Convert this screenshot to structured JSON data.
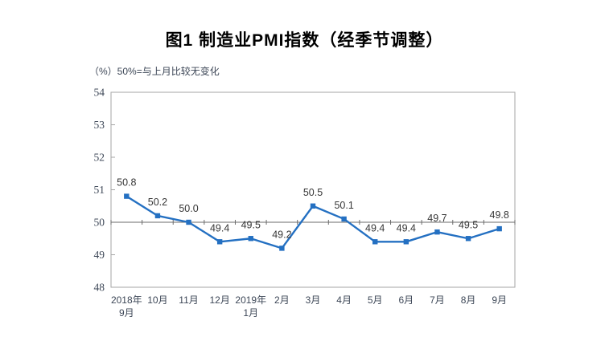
{
  "title": "图1 制造业PMI指数（经季节调整）",
  "axis_note": "（%）50%=与上月比较无变化",
  "colors": {
    "line": "#2470c2",
    "marker": "#2470c2",
    "frame": "#a6a6a6",
    "ref_line": "#6b6b6b",
    "axis_text": "#3d4757",
    "data_label_text": "#363636",
    "title_text": "#000000",
    "background": "#ffffff"
  },
  "chart_data": {
    "type": "line",
    "title": "图1 制造业PMI指数（经季节调整）",
    "unit_note": "（%）50%=与上月比较无变化",
    "categories": [
      [
        "2018年",
        "9月"
      ],
      [
        "10月"
      ],
      [
        "11月"
      ],
      [
        "12月"
      ],
      [
        "2019年",
        "1月"
      ],
      [
        "2月"
      ],
      [
        "3月"
      ],
      [
        "4月"
      ],
      [
        "5月"
      ],
      [
        "6月"
      ],
      [
        "7月"
      ],
      [
        "8月"
      ],
      [
        "9月"
      ]
    ],
    "values": [
      50.8,
      50.2,
      50.0,
      49.4,
      49.5,
      49.2,
      50.5,
      50.1,
      49.4,
      49.4,
      49.7,
      49.5,
      49.8
    ],
    "data_labels": [
      "50.8",
      "50.2",
      "50.0",
      "49.4",
      "49.5",
      "49.2",
      "50.5",
      "50.1",
      "49.4",
      "49.4",
      "49.7",
      "49.5",
      "49.8"
    ],
    "xlabel": "",
    "ylabel": "",
    "ylim": [
      48,
      54
    ],
    "yticks": [
      48,
      49,
      50,
      51,
      52,
      53,
      54
    ],
    "reference_line": 50,
    "grid": "off",
    "legend": "none",
    "marker": "square"
  }
}
